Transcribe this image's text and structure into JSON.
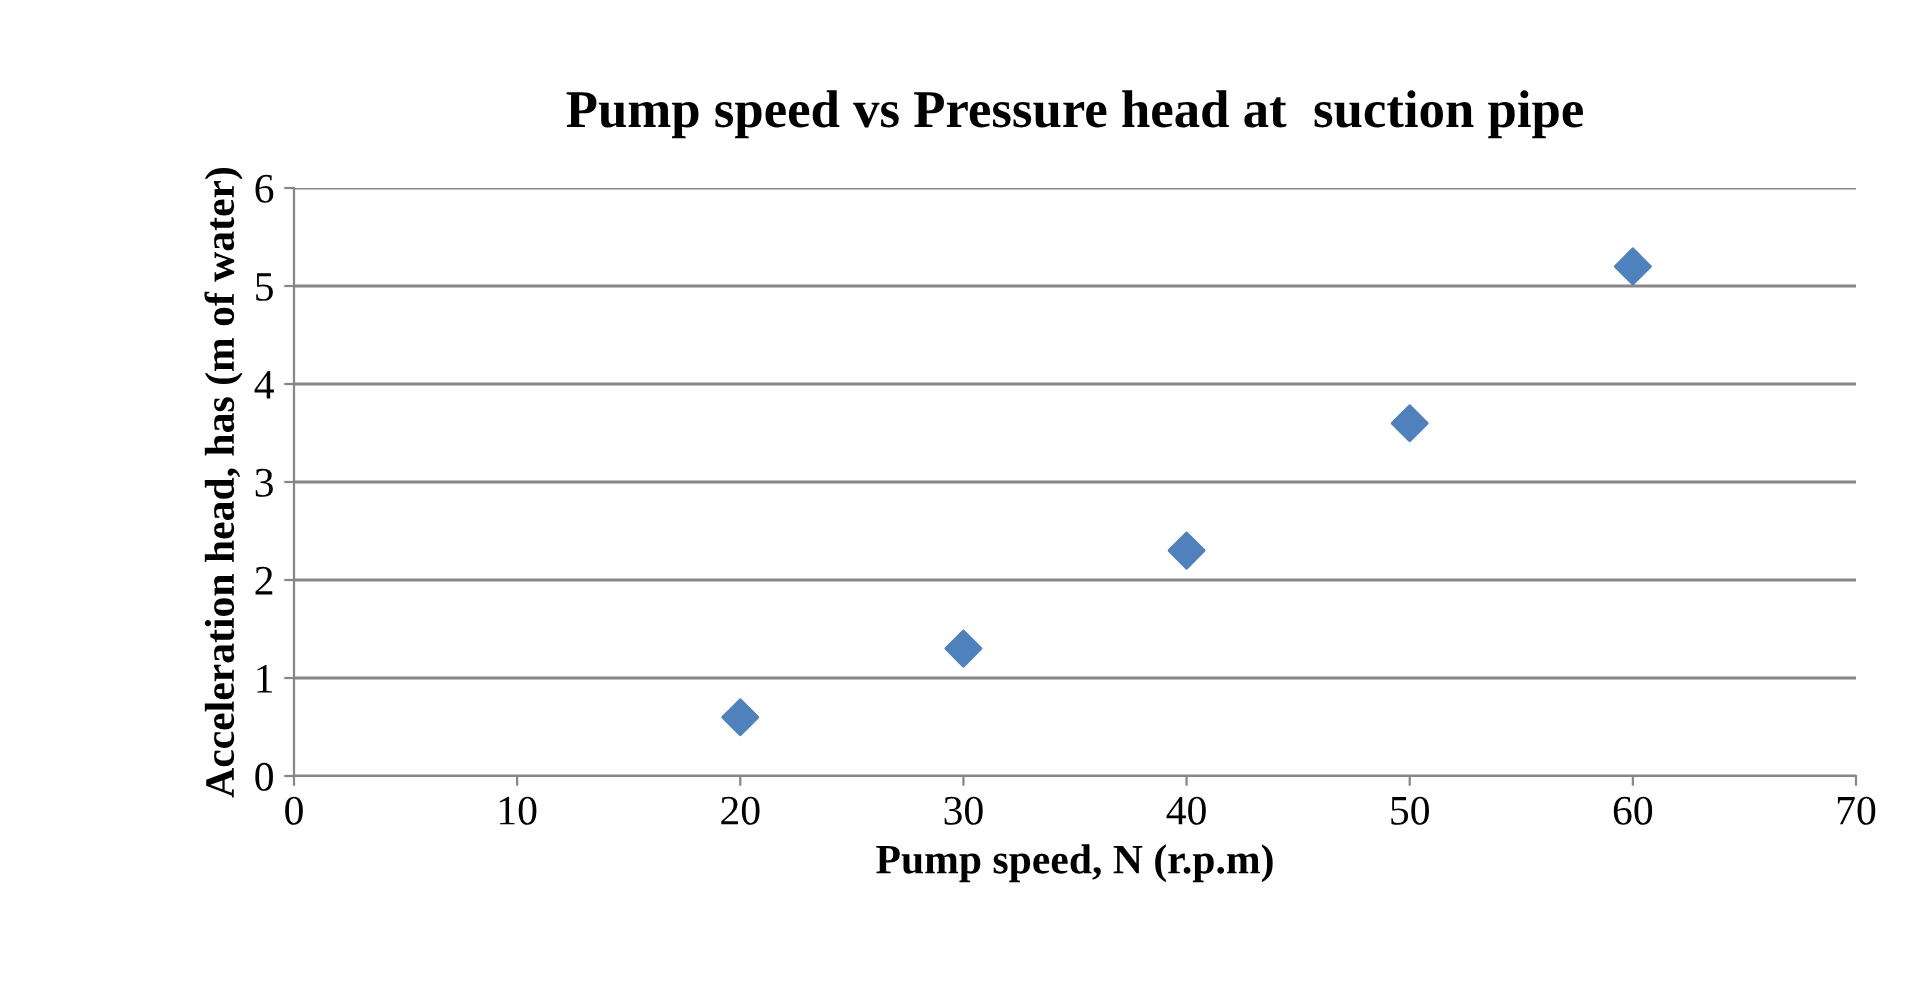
{
  "chart_data": {
    "type": "scatter",
    "title": "Pump speed vs Pressure head at  suction pipe",
    "xlabel": "Pump speed, N (r.p.m)",
    "ylabel": "Acceleration head, has (m of water)",
    "series": [
      {
        "color": "#4f81bd",
        "x": [
          20,
          30,
          40,
          50,
          60
        ],
        "values": [
          0.6,
          1.3,
          2.3,
          3.6,
          5.2
        ]
      }
    ],
    "xlim": [
      0,
      70
    ],
    "xticks": [
      0,
      10,
      20,
      30,
      40,
      50,
      60,
      70
    ],
    "ylim": [
      0,
      6
    ],
    "yticks": [
      0,
      1,
      2,
      3,
      4,
      5,
      6
    ],
    "grid": "y",
    "legend": false,
    "marker": "diamond"
  }
}
